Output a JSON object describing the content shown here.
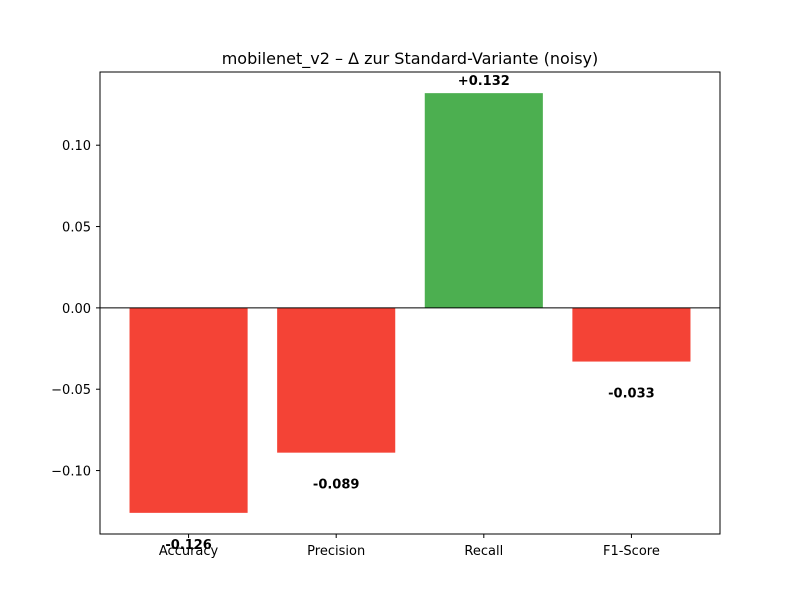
{
  "chart_data": {
    "type": "bar",
    "title": "mobilenet_v2 – Δ zur Standard-Variante (noisy)",
    "xlabel": "",
    "ylabel": "",
    "categories": [
      "Accuracy",
      "Precision",
      "Recall",
      "F1-Score"
    ],
    "values": [
      -0.126,
      -0.089,
      0.132,
      -0.033
    ],
    "value_labels": [
      "-0.126",
      "-0.089",
      "+0.132",
      "-0.033"
    ],
    "ylim": [
      -0.139,
      0.145
    ],
    "yticks": [
      -0.1,
      -0.05,
      0.0,
      0.05,
      0.1
    ],
    "ytick_labels": [
      "−0.10",
      "−0.05",
      "0.00",
      "0.05",
      "0.10"
    ],
    "grid": false,
    "colors": {
      "positive": "#4caf50",
      "negative": "#f44336",
      "axis": "#000000",
      "zero_line": "#000000",
      "background": "#ffffff"
    }
  }
}
